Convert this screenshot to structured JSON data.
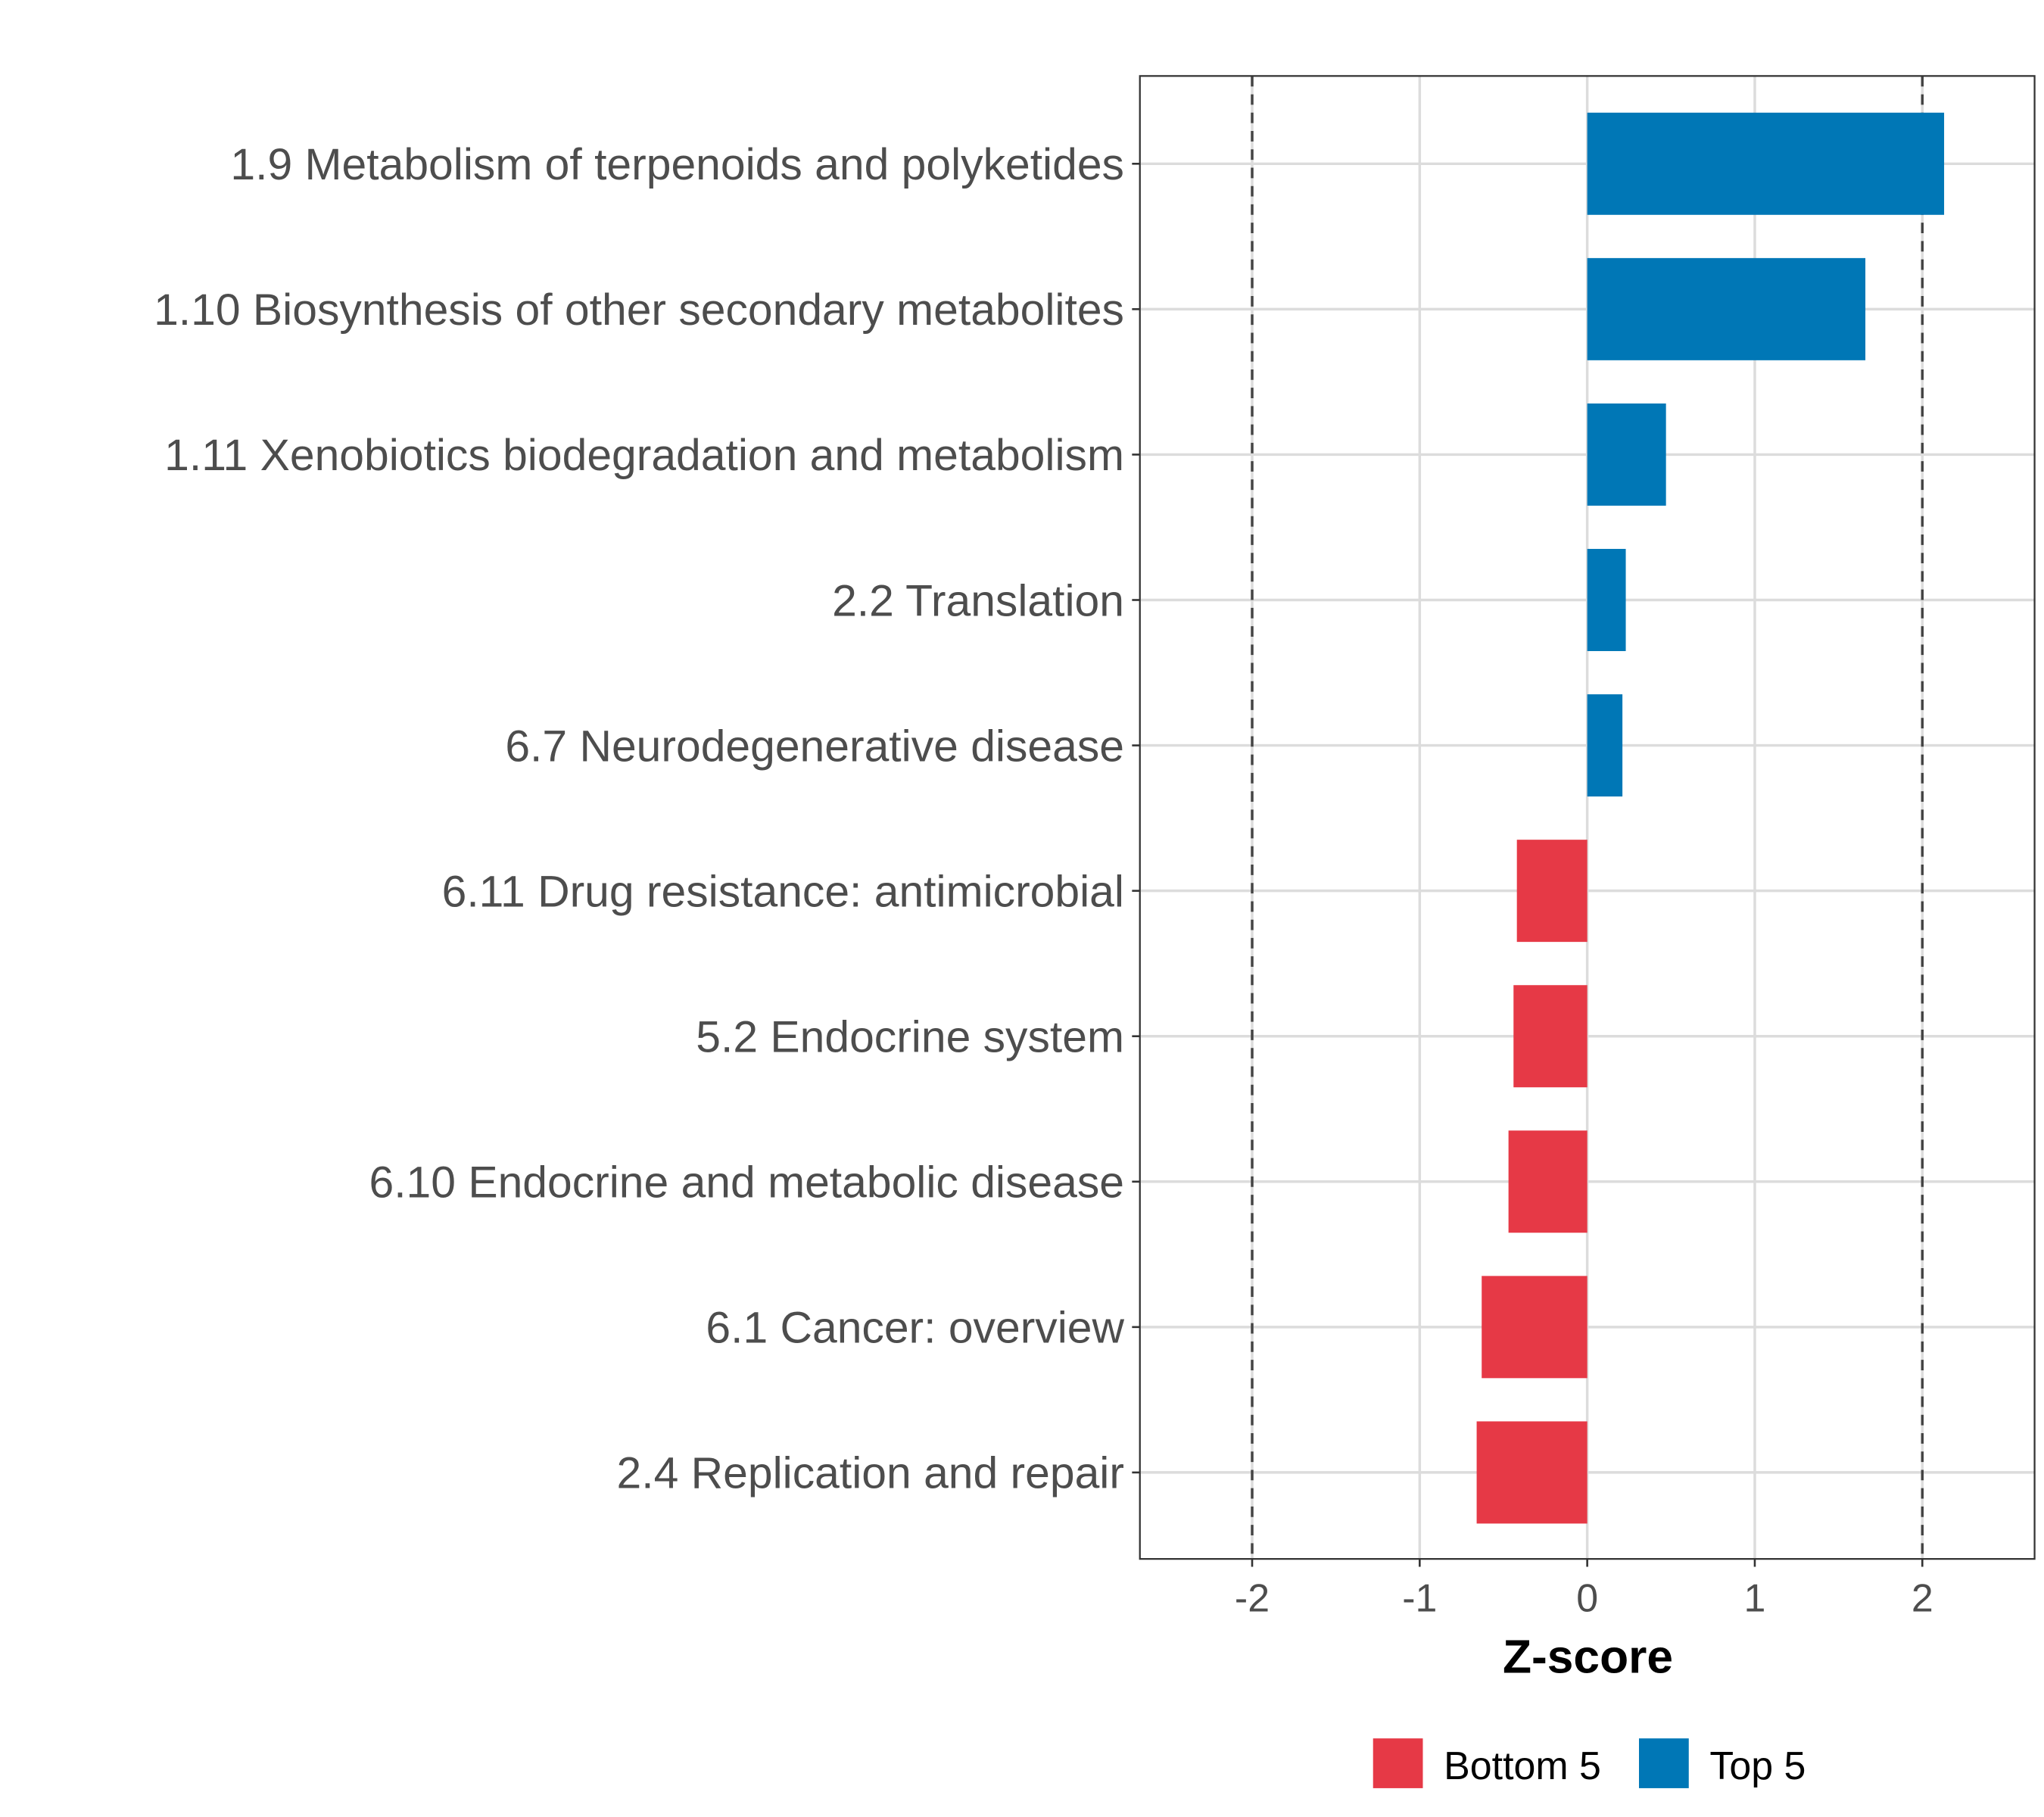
{
  "chart_data": {
    "type": "bar",
    "orientation": "horizontal",
    "title": "",
    "xlabel": "Z-score",
    "ylabel": "",
    "xlim": [
      -2.67,
      2.67
    ],
    "xticks": [
      -2,
      -1,
      0,
      1,
      2
    ],
    "xtick_labels": [
      "-2",
      "-1",
      "0",
      "1",
      "2"
    ],
    "reference_lines": [
      -2,
      2
    ],
    "grid": true,
    "categories": [
      "1.9 Metabolism of terpenoids and polyketides",
      "1.10 Biosynthesis of other secondary metabolites",
      "1.11 Xenobiotics biodegradation and metabolism",
      "2.2 Translation",
      "6.7 Neurodegenerative disease",
      "6.11 Drug resistance: antimicrobial",
      "5.2 Endocrine system",
      "6.10 Endocrine and metabolic disease",
      "6.1 Cancer: overview",
      "2.4 Replication and repair"
    ],
    "values": [
      2.13,
      1.66,
      0.47,
      0.23,
      0.21,
      -0.42,
      -0.44,
      -0.47,
      -0.63,
      -0.66
    ],
    "groups": [
      "Top 5",
      "Top 5",
      "Top 5",
      "Top 5",
      "Top 5",
      "Bottom 5",
      "Bottom 5",
      "Bottom 5",
      "Bottom 5",
      "Bottom 5"
    ],
    "legend": {
      "placement": "bottom",
      "entries": [
        {
          "label": "Bottom 5",
          "color": "#E63946"
        },
        {
          "label": "Top 5",
          "color": "#0077B6"
        }
      ]
    }
  }
}
